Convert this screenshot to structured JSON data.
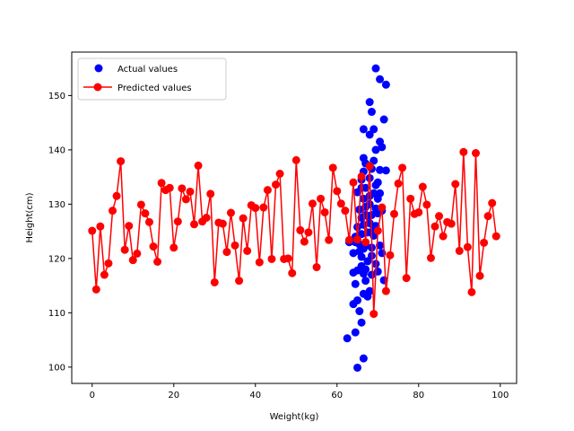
{
  "chart_data": {
    "type": "scatter",
    "title": "",
    "xlabel": "Weight(kg)",
    "ylabel": "Height(cm)",
    "xlim": [
      -5,
      104
    ],
    "ylim": [
      97,
      158
    ],
    "x_ticks": [
      0,
      20,
      40,
      60,
      80,
      100
    ],
    "y_ticks": [
      100,
      110,
      120,
      130,
      140,
      150
    ],
    "grid": false,
    "legend_position": "top-left",
    "series": [
      {
        "name": "Actual values",
        "kind": "scatter",
        "color": "#0000ff",
        "points": [
          [
            62.5,
            105.3
          ],
          [
            65.0,
            99.9
          ],
          [
            66.5,
            101.6
          ],
          [
            64.5,
            106.4
          ],
          [
            66.0,
            108.2
          ],
          [
            65.5,
            110.3
          ],
          [
            64.0,
            111.6
          ],
          [
            65.0,
            112.3
          ],
          [
            67.5,
            113.0
          ],
          [
            68.0,
            114.0
          ],
          [
            66.5,
            113.5
          ],
          [
            64.5,
            115.3
          ],
          [
            67.0,
            115.9
          ],
          [
            64.0,
            117.4
          ],
          [
            65.0,
            117.8
          ],
          [
            66.5,
            117.2
          ],
          [
            68.5,
            117.0
          ],
          [
            70.0,
            117.6
          ],
          [
            66.0,
            118.6
          ],
          [
            67.0,
            118.0
          ],
          [
            66.0,
            120.3
          ],
          [
            67.5,
            119.5
          ],
          [
            69.5,
            119.0
          ],
          [
            64.0,
            121.0
          ],
          [
            65.5,
            121.3
          ],
          [
            66.5,
            121.8
          ],
          [
            71.0,
            121.0
          ],
          [
            71.5,
            116.0
          ],
          [
            63.0,
            123.0
          ],
          [
            64.5,
            123.0
          ],
          [
            65.5,
            122.6
          ],
          [
            67.0,
            122.4
          ],
          [
            68.5,
            122.0
          ],
          [
            70.5,
            122.4
          ],
          [
            64.5,
            124.0
          ],
          [
            66.0,
            124.5
          ],
          [
            67.5,
            124.8
          ],
          [
            69.0,
            124.2
          ],
          [
            65.0,
            125.8
          ],
          [
            66.5,
            126.2
          ],
          [
            68.0,
            126.5
          ],
          [
            69.5,
            126.0
          ],
          [
            66.0,
            127.5
          ],
          [
            67.5,
            127.8
          ],
          [
            68.5,
            128.0
          ],
          [
            70.0,
            128.3
          ],
          [
            65.5,
            129.0
          ],
          [
            67.0,
            129.5
          ],
          [
            68.0,
            130.0
          ],
          [
            69.5,
            129.2
          ],
          [
            71.0,
            128.8
          ],
          [
            66.5,
            131.0
          ],
          [
            68.0,
            131.5
          ],
          [
            69.0,
            132.0
          ],
          [
            70.5,
            132.0
          ],
          [
            65.0,
            132.2
          ],
          [
            67.0,
            133.0
          ],
          [
            69.5,
            133.5
          ],
          [
            66.0,
            134.5
          ],
          [
            68.0,
            134.8
          ],
          [
            70.0,
            134.0
          ],
          [
            66.5,
            136.0
          ],
          [
            68.5,
            136.5
          ],
          [
            70.5,
            136.3
          ],
          [
            72.0,
            136.2
          ],
          [
            67.0,
            137.5
          ],
          [
            69.0,
            138.0
          ],
          [
            66.5,
            138.5
          ],
          [
            69.5,
            140.0
          ],
          [
            71.0,
            140.5
          ],
          [
            70.5,
            141.5
          ],
          [
            66.5,
            143.8
          ],
          [
            68.0,
            142.8
          ],
          [
            69.0,
            143.8
          ],
          [
            71.5,
            145.6
          ],
          [
            68.5,
            147.0
          ],
          [
            68.0,
            148.8
          ],
          [
            72.0,
            152.0
          ],
          [
            70.5,
            153.0
          ],
          [
            69.5,
            155.0
          ],
          [
            67.0,
            128.0
          ],
          [
            69.0,
            125.5
          ],
          [
            66.0,
            133.0
          ],
          [
            70.0,
            131.0
          ],
          [
            68.5,
            120.5
          ]
        ]
      },
      {
        "name": "Predicted values",
        "kind": "line",
        "color": "#ff0000",
        "x": [
          0,
          1,
          2,
          3,
          4,
          5,
          6,
          7,
          8,
          9,
          10,
          11,
          12,
          13,
          14,
          15,
          16,
          17,
          18,
          19,
          20,
          21,
          22,
          23,
          24,
          25,
          26,
          27,
          28,
          29,
          30,
          31,
          32,
          33,
          34,
          35,
          36,
          37,
          38,
          39,
          40,
          41,
          42,
          43,
          44,
          45,
          46,
          47,
          48,
          49,
          50,
          51,
          52,
          53,
          54,
          55,
          56,
          57,
          58,
          59,
          60,
          61,
          62,
          63,
          64,
          65,
          66,
          67,
          68,
          69,
          70,
          71,
          72,
          73,
          74,
          75,
          76,
          77,
          78,
          79,
          80,
          81,
          82,
          83,
          84,
          85,
          86,
          87,
          88,
          89,
          90,
          91,
          92,
          93,
          94,
          95,
          96,
          97,
          98,
          99
        ],
        "y": [
          125.1,
          114.3,
          125.9,
          117.0,
          119.1,
          128.8,
          131.5,
          137.9,
          121.6,
          126.0,
          119.7,
          120.9,
          129.9,
          128.3,
          126.7,
          122.2,
          119.4,
          133.9,
          132.6,
          133.0,
          122.0,
          126.8,
          132.9,
          130.9,
          132.3,
          126.3,
          137.1,
          126.8,
          127.5,
          131.9,
          115.6,
          126.6,
          126.4,
          121.2,
          128.4,
          122.4,
          115.9,
          127.4,
          121.4,
          129.8,
          129.3,
          119.3,
          129.4,
          132.6,
          119.9,
          133.6,
          135.6,
          119.9,
          120.0,
          117.3,
          138.1,
          125.2,
          123.1,
          124.8,
          130.1,
          118.4,
          131.0,
          128.5,
          123.4,
          136.7,
          132.4,
          130.1,
          128.8,
          123.4,
          134.0,
          123.5,
          135.1,
          123.0,
          137.0,
          109.8,
          125.1,
          129.4,
          114.0,
          120.6,
          128.2,
          133.8,
          136.7,
          116.4,
          131.0,
          128.2,
          128.5,
          133.2,
          129.9,
          120.1,
          125.9,
          127.8,
          124.1,
          126.7,
          126.4,
          133.7,
          121.4,
          139.6,
          122.1,
          113.8,
          139.4,
          116.8,
          122.9,
          127.8,
          130.2,
          124.1
        ]
      }
    ]
  }
}
